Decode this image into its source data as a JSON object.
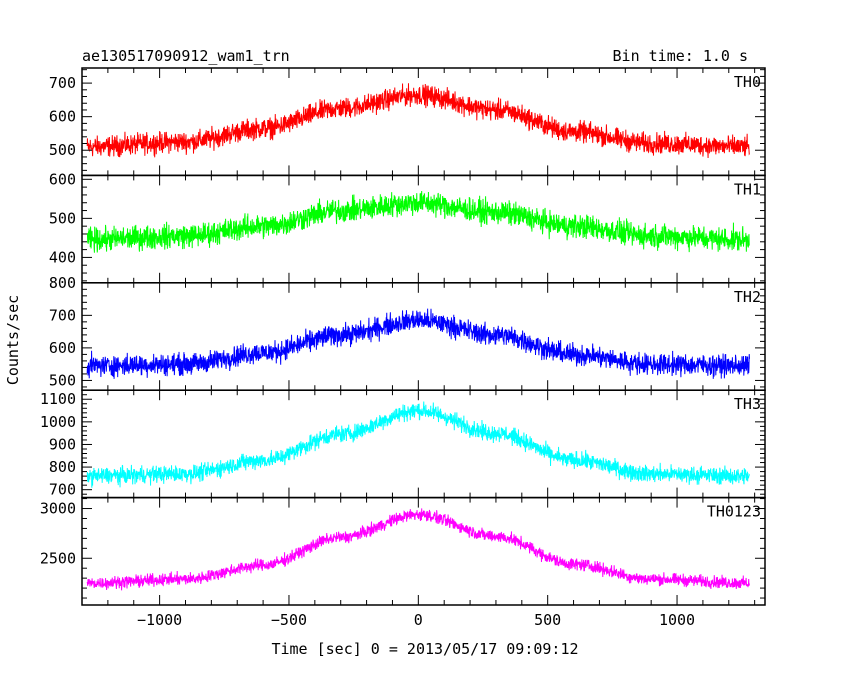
{
  "chart_data": {
    "type": "line",
    "title": "ae130517090912_wam1_trn",
    "subtitle": "Bin time: 1.0 s",
    "xlabel": "Time [sec] 0 = 2013/05/17 09:09:12",
    "ylabel": "Counts/sec",
    "xlim": [
      -1300,
      1340
    ],
    "x_ticks": [
      -1000,
      -500,
      0,
      500,
      1000
    ],
    "x_tick_labels": [
      "−1000",
      "−500",
      "0",
      "500",
      "1000"
    ],
    "x_data_range": [
      -1280,
      1280
    ],
    "grid": false,
    "series": [
      {
        "name": "TH0",
        "color": "#ff0000",
        "ylim": [
          425,
          745
        ],
        "y_ticks": [
          500,
          600,
          700
        ],
        "profile": [
          [
            -1280,
            510
          ],
          [
            -900,
            525
          ],
          [
            -600,
            565
          ],
          [
            -300,
            625
          ],
          [
            0,
            665
          ],
          [
            300,
            620
          ],
          [
            600,
            555
          ],
          [
            900,
            520
          ],
          [
            1280,
            510
          ]
        ],
        "noise_amplitude": 45
      },
      {
        "name": "TH1",
        "color": "#00ff00",
        "ylim": [
          335,
          610
        ],
        "y_ticks": [
          400,
          500,
          600
        ],
        "profile": [
          [
            -1280,
            445
          ],
          [
            -900,
            455
          ],
          [
            -600,
            480
          ],
          [
            -300,
            520
          ],
          [
            0,
            540
          ],
          [
            300,
            515
          ],
          [
            600,
            480
          ],
          [
            900,
            455
          ],
          [
            1280,
            445
          ]
        ],
        "noise_amplitude": 45
      },
      {
        "name": "TH2",
        "color": "#0000ff",
        "ylim": [
          470,
          800
        ],
        "y_ticks": [
          500,
          600,
          700,
          800
        ],
        "profile": [
          [
            -1280,
            545
          ],
          [
            -900,
            550
          ],
          [
            -600,
            585
          ],
          [
            -300,
            640
          ],
          [
            0,
            685
          ],
          [
            300,
            640
          ],
          [
            600,
            580
          ],
          [
            900,
            550
          ],
          [
            1280,
            545
          ]
        ],
        "noise_amplitude": 48
      },
      {
        "name": "TH3",
        "color": "#00ffff",
        "ylim": [
          665,
          1140
        ],
        "y_ticks": [
          700,
          800,
          900,
          1000,
          1100
        ],
        "profile": [
          [
            -1280,
            760
          ],
          [
            -900,
            770
          ],
          [
            -600,
            830
          ],
          [
            -300,
            945
          ],
          [
            0,
            1050
          ],
          [
            300,
            950
          ],
          [
            600,
            830
          ],
          [
            900,
            770
          ],
          [
            1280,
            760
          ]
        ],
        "noise_amplitude": 55
      },
      {
        "name": "TH0123",
        "color": "#ff00ff",
        "ylim": [
          2030,
          3110
        ],
        "y_ticks": [
          2500,
          3000
        ],
        "y_tick_labels": [
          "2500",
          "3000"
        ],
        "profile": [
          [
            -1280,
            2250
          ],
          [
            -900,
            2290
          ],
          [
            -600,
            2430
          ],
          [
            -300,
            2710
          ],
          [
            0,
            2940
          ],
          [
            300,
            2720
          ],
          [
            600,
            2440
          ],
          [
            900,
            2290
          ],
          [
            1280,
            2250
          ]
        ],
        "noise_amplitude": 90
      }
    ]
  }
}
